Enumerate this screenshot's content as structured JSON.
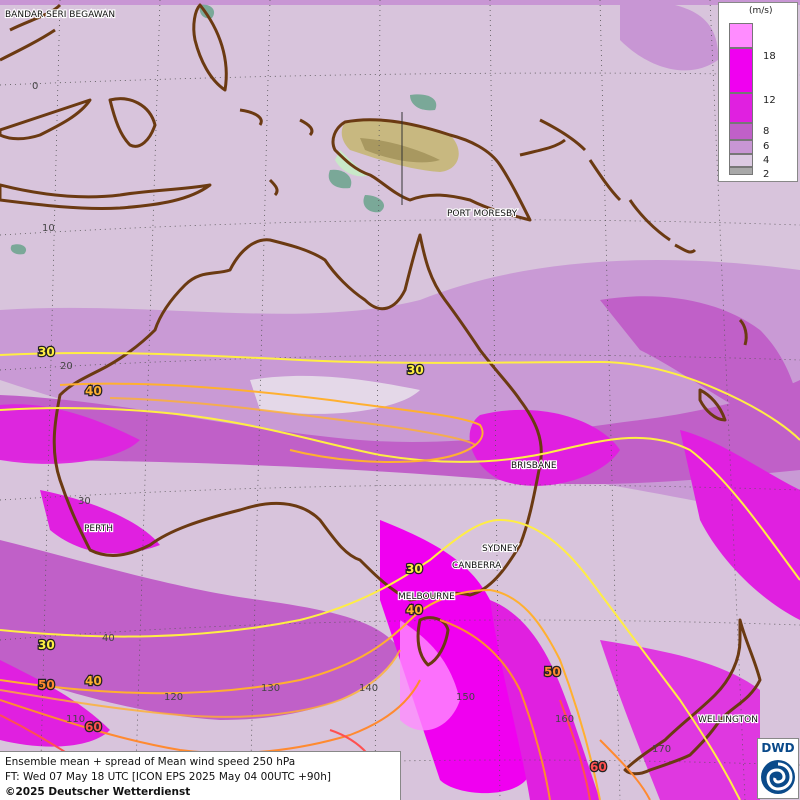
{
  "map": {
    "cities": [
      {
        "name": "BANDAR SERI BEGAWAN"
      },
      {
        "name": "PORT MORESBY"
      },
      {
        "name": "BRISBANE"
      },
      {
        "name": "PERTH"
      },
      {
        "name": "SYDNEY"
      },
      {
        "name": "CANBERRA"
      },
      {
        "name": "MELBOURNE"
      },
      {
        "name": "WELLINGTON"
      }
    ],
    "latitude_labels": [
      "0",
      "10",
      "20",
      "30",
      "40"
    ],
    "longitude_labels": [
      "110",
      "120",
      "130",
      "140",
      "150",
      "160",
      "170"
    ],
    "contour_labels": [
      "30",
      "40",
      "50",
      "60"
    ]
  },
  "legend": {
    "unit": "(m/s)",
    "ticks": [
      "18",
      "12",
      "8",
      "6",
      "4",
      "2"
    ],
    "colors": [
      "#ff8cff",
      "#f000f0",
      "#e020e0",
      "#c060c8",
      "#c896d4",
      "#dccae2",
      "#a8a8a8"
    ]
  },
  "footer": {
    "line1": "Ensemble mean + spread of Mean wind speed 250 hPa",
    "line2": "FT: Wed 07 May 18 UTC [ICON EPS 2025 May 04 00UTC +90h]",
    "copyright": "©2025 Deutscher Wetterdienst"
  },
  "logo": {
    "text": "DWD"
  },
  "colors": {
    "background": "#d8c4dc",
    "contour_30": "#ffee44",
    "contour_40": "#ffb030",
    "contour_50": "#ff8a30",
    "contour_60": "#ff5050",
    "coast": "#6b3a12"
  }
}
